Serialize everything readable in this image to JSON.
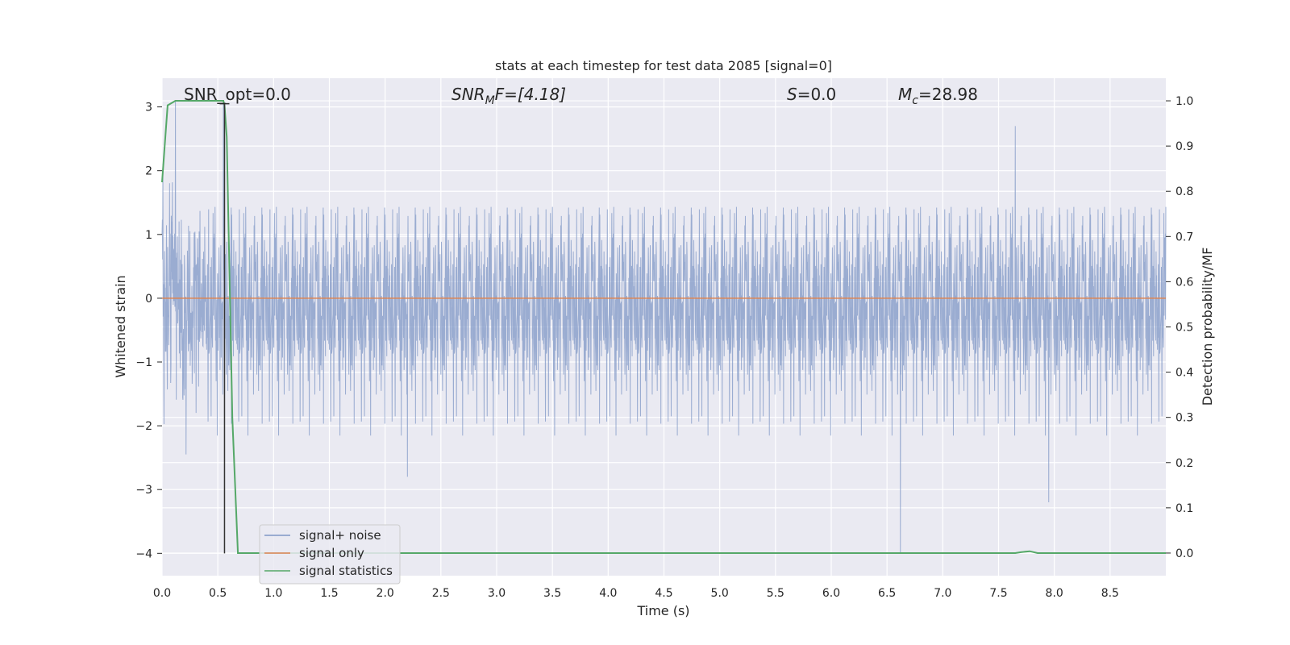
{
  "chart_data": {
    "type": "line",
    "title": "stats at each timestep for test data 2085 [signal=0]",
    "xlabel": "Time (s)",
    "ylabel": "Whitened strain",
    "y2label": "Detection probability/MF",
    "xlim": [
      0.0,
      9.0
    ],
    "ylim": [
      -4.35,
      3.45
    ],
    "y2lim": [
      -0.05,
      1.05
    ],
    "xticks": [
      "0.0",
      "0.5",
      "1.0",
      "1.5",
      "2.0",
      "2.5",
      "3.0",
      "3.5",
      "4.0",
      "4.5",
      "5.0",
      "5.5",
      "6.0",
      "6.5",
      "7.0",
      "7.5",
      "8.0",
      "8.5"
    ],
    "yticks": [
      "3",
      "2",
      "1",
      "0",
      "−1",
      "−2",
      "−3",
      "−4"
    ],
    "y2ticks": [
      "1.0",
      "0.9",
      "0.8",
      "0.7",
      "0.6",
      "0.5",
      "0.4",
      "0.3",
      "0.2",
      "0.1",
      "0.0"
    ],
    "grid": true,
    "legend_position": "lower-left",
    "annotations": {
      "snr_opt": "SNR_opt=0.0",
      "snr_mf_base": "SNR",
      "snr_mf_sub": "M",
      "snr_mf_rest": "F=[4.18]",
      "s_label": "S",
      "s_rest": "=0.0",
      "mc_base": "M",
      "mc_sub": "c",
      "mc_rest": "=28.98"
    },
    "series": [
      {
        "name": "signal+ noise",
        "color": "#7f97c6",
        "envelope": "whitened noise, approx ±1.3 core band, peaks to ~+2.7 / −2.7",
        "spikes": [
          {
            "t": 0.12,
            "y": 3.1
          },
          {
            "t": 0.55,
            "y": 3.05
          },
          {
            "t": 6.62,
            "y": -4.0
          },
          {
            "t": 7.95,
            "y": -3.2
          },
          {
            "t": 2.2,
            "y": -2.8
          },
          {
            "t": 7.65,
            "y": 2.7
          }
        ]
      },
      {
        "name": "signal only",
        "color": "#dd8452",
        "values": "constant 0"
      },
      {
        "name": "signal statistics",
        "color": "#55a868",
        "points": [
          [
            0.0,
            0.82
          ],
          [
            0.05,
            0.99
          ],
          [
            0.12,
            1.0
          ],
          [
            0.55,
            1.0
          ],
          [
            0.56,
            0.99
          ],
          [
            0.58,
            0.92
          ],
          [
            0.63,
            0.3
          ],
          [
            0.68,
            0.0
          ],
          [
            7.65,
            0.0
          ],
          [
            7.7,
            0.002
          ],
          [
            7.78,
            0.004
          ],
          [
            7.85,
            0.0
          ],
          [
            9.0,
            0.0
          ]
        ]
      }
    ],
    "marker_line": {
      "t": 0.56,
      "y_top": 3.05,
      "y_bottom": -4.0,
      "color": "#333333"
    }
  },
  "legend": {
    "items": [
      "signal+ noise",
      "signal only",
      "signal statistics"
    ]
  }
}
